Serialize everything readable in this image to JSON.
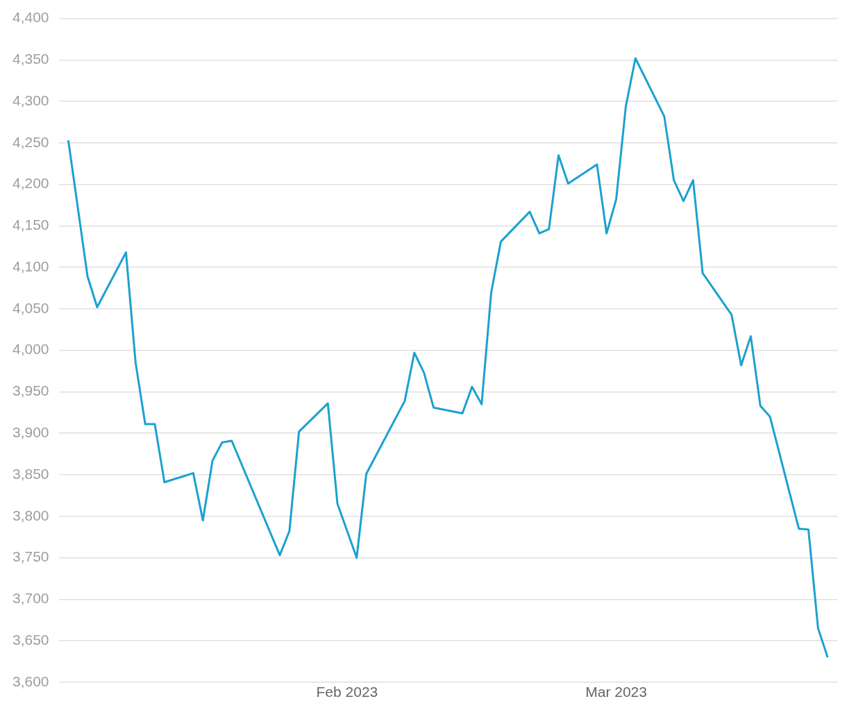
{
  "chart_data": {
    "type": "line",
    "x": [
      "2023-01-03",
      "2023-01-05",
      "2023-01-06",
      "2023-01-09",
      "2023-01-10",
      "2023-01-11",
      "2023-01-12",
      "2023-01-13",
      "2023-01-16",
      "2023-01-17",
      "2023-01-18",
      "2023-01-19",
      "2023-01-20",
      "2023-01-25",
      "2023-01-26",
      "2023-01-27",
      "2023-01-30",
      "2023-01-31",
      "2023-02-02",
      "2023-02-03",
      "2023-02-07",
      "2023-02-08",
      "2023-02-09",
      "2023-02-10",
      "2023-02-13",
      "2023-02-14",
      "2023-02-15",
      "2023-02-16",
      "2023-02-17",
      "2023-02-20",
      "2023-02-21",
      "2023-02-22",
      "2023-02-23",
      "2023-02-24",
      "2023-02-27",
      "2023-02-28",
      "2023-03-01",
      "2023-03-02",
      "2023-03-03",
      "2023-03-06",
      "2023-03-07",
      "2023-03-08",
      "2023-03-09",
      "2023-03-10",
      "2023-03-13",
      "2023-03-14",
      "2023-03-15",
      "2023-03-16",
      "2023-03-17",
      "2023-03-20",
      "2023-03-21",
      "2023-03-22",
      "2023-03-23"
    ],
    "series": [
      {
        "color": "#1ba1cf",
        "values": [
          4253,
          4089,
          4052,
          4118,
          3985,
          3911,
          3911,
          3841,
          3852,
          3795,
          3867,
          3889,
          3891,
          3753,
          3782,
          3902,
          3936,
          3815,
          3750,
          3851,
          3939,
          3997,
          3973,
          3931,
          3924,
          3956,
          3935,
          4070,
          4131,
          4167,
          4141,
          4146,
          4235,
          4201,
          4224,
          4141,
          4182,
          4294,
          4352,
          4282,
          4205,
          4180,
          4205,
          4093,
          4043,
          3982,
          4017,
          3933,
          3920,
          3785,
          3784,
          3665,
          3630
        ]
      }
    ],
    "xlim": [
      "2023-01-02",
      "2023-03-24"
    ],
    "xticks": [
      {
        "value": "2023-02-01",
        "label": "Feb 2023"
      },
      {
        "value": "2023-03-01",
        "label": "Mar 2023"
      }
    ],
    "ylim": [
      3600,
      4400
    ],
    "yticks": [
      {
        "value": 3600,
        "label": "3,600"
      },
      {
        "value": 3650,
        "label": "3,650"
      },
      {
        "value": 3700,
        "label": "3,700"
      },
      {
        "value": 3750,
        "label": "3,750"
      },
      {
        "value": 3800,
        "label": "3,800"
      },
      {
        "value": 3850,
        "label": "3,850"
      },
      {
        "value": 3900,
        "label": "3,900"
      },
      {
        "value": 3950,
        "label": "3,950"
      },
      {
        "value": 4000,
        "label": "4,000"
      },
      {
        "value": 4050,
        "label": "4,050"
      },
      {
        "value": 4100,
        "label": "4,100"
      },
      {
        "value": 4150,
        "label": "4,150"
      },
      {
        "value": 4200,
        "label": "4,200"
      },
      {
        "value": 4250,
        "label": "4,250"
      },
      {
        "value": 4300,
        "label": "4,300"
      },
      {
        "value": 4350,
        "label": "4,350"
      },
      {
        "value": 4400,
        "label": "4,400"
      }
    ],
    "grid": "y",
    "legend": false,
    "marker": "none",
    "line_style": "solid"
  }
}
